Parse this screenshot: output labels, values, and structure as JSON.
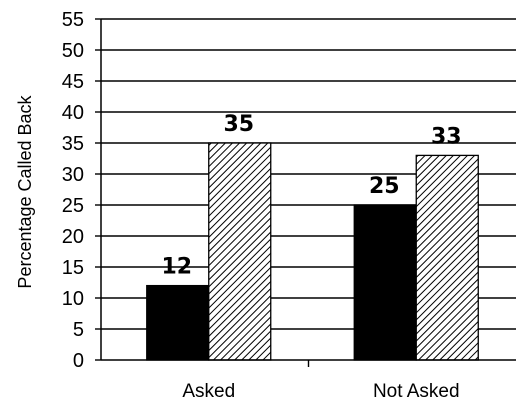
{
  "chart_data": {
    "type": "bar",
    "title": "",
    "xlabel": "",
    "ylabel": "Percentage Called Back",
    "categories": [
      "Asked",
      "Not Asked"
    ],
    "series": [
      {
        "fill": "solid",
        "color": "#000000",
        "values": [
          12,
          25
        ]
      },
      {
        "fill": "diagonal-hatch",
        "color": "#000000",
        "values": [
          35,
          33
        ]
      }
    ],
    "ylim": [
      0,
      55
    ],
    "y_ticks": [
      0,
      5,
      10,
      15,
      20,
      25,
      30,
      35,
      40,
      45,
      50,
      55
    ],
    "grid": true,
    "legend": "none",
    "data_labels": true
  }
}
